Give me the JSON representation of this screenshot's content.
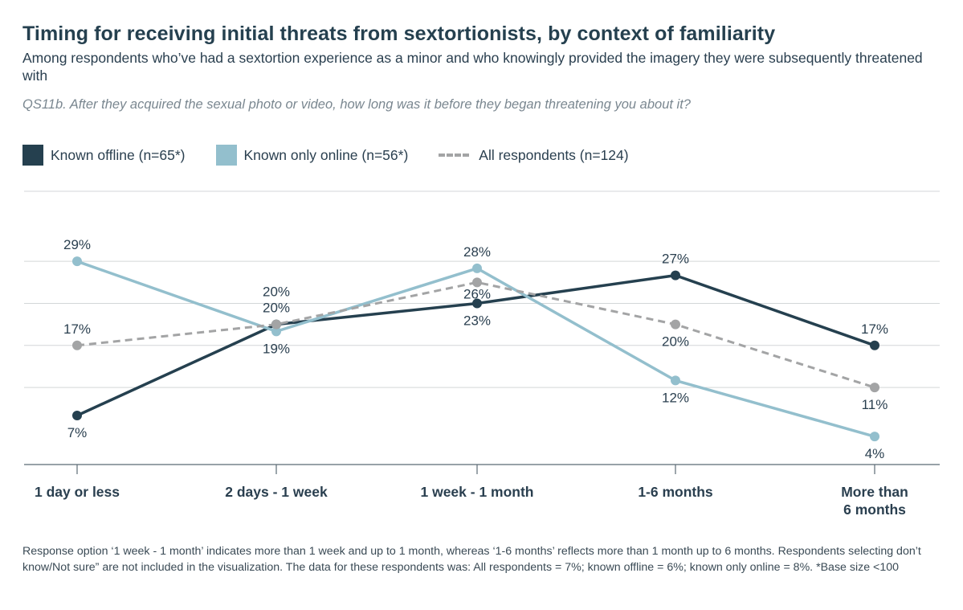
{
  "title": "Timing for receiving initial threats from sextortionists, by context of familiarity",
  "subtitle": "Among respondents who’ve had a sextortion experience as a minor and who knowingly provided the imagery they were subsequently threatened with",
  "question": "QS11b. After they acquired the sexual photo or video, how long was it before they began threatening you about it?",
  "footnote": "Response option ‘1 week - 1 month’ indicates more than 1 week and up to 1 month, whereas ‘1-6 months’ reflects more than 1 month up to 6 months. Respondents selecting don’t know/Not sure” are not included in the visualization. The data for these respondents was: All respondents = 7%; known offline = 6%; known only online = 8%. *Base size <100",
  "colors": {
    "offline": "#25404f",
    "online": "#93bfcd",
    "all": "#a3a4a5",
    "grid": "#d3d6d8"
  },
  "chart_data": {
    "type": "line",
    "categories": [
      "1 day or less",
      "2 days - 1 week",
      "1 week - 1 month",
      "1-6 months",
      "More than 6 months"
    ],
    "category_lines": [
      [
        "1 day or less"
      ],
      [
        "2 days - 1 week"
      ],
      [
        "1 week - 1 month"
      ],
      [
        "1-6 months"
      ],
      [
        "More than",
        "6 months"
      ]
    ],
    "ylim": [
      0,
      39
    ],
    "gridlines": [
      11,
      17,
      23,
      29
    ],
    "series": [
      {
        "key": "offline",
        "name": "Known offline (n=65*)",
        "values": [
          7,
          20,
          23,
          27,
          17
        ],
        "labels": [
          "7%",
          "20%",
          "23%",
          "27%",
          "17%"
        ],
        "style": "solid"
      },
      {
        "key": "online",
        "name": "Known only online (n=56*)",
        "values": [
          29,
          19,
          28,
          12,
          4
        ],
        "labels": [
          "29%",
          "19%",
          "28%",
          "12%",
          "4%"
        ],
        "style": "solid"
      },
      {
        "key": "all",
        "name": "All respondents (n=124)",
        "values": [
          17,
          20,
          26,
          20,
          11
        ],
        "labels": [
          "17%",
          "20%",
          "26%",
          "20%",
          "11%"
        ],
        "style": "dashed"
      }
    ]
  }
}
